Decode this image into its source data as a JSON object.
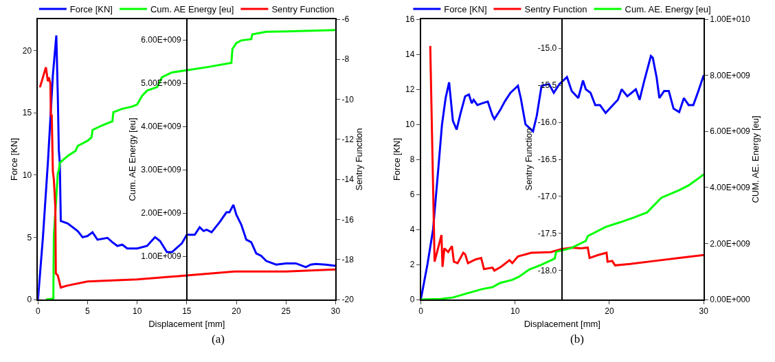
{
  "chart_data": [
    {
      "type": "line",
      "xlabel": "Displacement [mm]",
      "ylabel": "Force [KN]",
      "y2label": "Cum. AE Energy [eu]",
      "y3label": "Sentry Function",
      "legend": "top",
      "xlim": [
        0,
        30
      ],
      "xticks": [
        0,
        5,
        10,
        15,
        20,
        25,
        30
      ],
      "ylim": [
        0,
        22.5
      ],
      "yticks": [
        0,
        5,
        10,
        15,
        20
      ],
      "y2lim": [
        0,
        6480000000
      ],
      "y2ticks": [
        {
          "value": 1000000000,
          "label": "1.00E+009"
        },
        {
          "value": 2000000000,
          "label": "2.00E+009"
        },
        {
          "value": 3000000000,
          "label": "3.00E+009"
        },
        {
          "value": 4000000000,
          "label": "4.00E+009"
        },
        {
          "value": 5000000000,
          "label": "5.00E+009"
        },
        {
          "value": 6000000000,
          "label": "6.00E+009"
        }
      ],
      "y3lim": [
        -20,
        -6
      ],
      "y3ticks": [
        -20,
        -18,
        -16,
        -14,
        -12,
        -10,
        -8,
        -6
      ],
      "annotations": [
        "(a)"
      ],
      "series": [
        {
          "name": "Force [KN]",
          "color": "#0000ff",
          "x": [
            0,
            0.5,
            1.0,
            1.5,
            1.85,
            2.0,
            2.1,
            2.2,
            2.3,
            3,
            4,
            4.5,
            5,
            5.5,
            6,
            7,
            7.5,
            8,
            8.5,
            9,
            10,
            11,
            11.8,
            12.3,
            13,
            13.5,
            14.5,
            15,
            15.8,
            16.3,
            16.7,
            17,
            17.5,
            18.3,
            19,
            19.3,
            19.7,
            20,
            20.5,
            21,
            21.5,
            22,
            22.5,
            23,
            24,
            25,
            26,
            27,
            27.5,
            28,
            29,
            30
          ],
          "values": [
            0,
            5,
            11,
            18,
            21.2,
            16.3,
            12,
            11,
            6.3,
            6.1,
            5.5,
            5.0,
            5.1,
            5.4,
            4.8,
            4.95,
            4.6,
            4.3,
            4.4,
            4.1,
            4.1,
            4.3,
            5.0,
            4.7,
            3.8,
            3.8,
            4.5,
            5.2,
            5.2,
            5.8,
            5.5,
            5.6,
            5.4,
            6.2,
            7.0,
            7.0,
            7.6,
            6.8,
            6.0,
            4.8,
            4.6,
            3.7,
            3.5,
            3.1,
            2.8,
            2.9,
            2.9,
            2.6,
            2.8,
            2.85,
            2.8,
            2.7
          ]
        },
        {
          "name": "Cum. AE Energy [eu]",
          "color": "#00ff00",
          "axis": "y2",
          "x": [
            0.8,
            1.55,
            1.6,
            2.0,
            2.1,
            2.2,
            3,
            3.8,
            4,
            5,
            5.4,
            5.5,
            6.5,
            7.5,
            7.6,
            8.5,
            9.5,
            10,
            10.5,
            11,
            12,
            12.5,
            13.5,
            15,
            17,
            19.5,
            19.6,
            20,
            20.5,
            21.5,
            21.6,
            23,
            25,
            30
          ],
          "values": [
            0,
            20000000,
            1460000000,
            2920000000,
            2980000000,
            3160000000,
            3320000000,
            3440000000,
            3550000000,
            3670000000,
            3750000000,
            3920000000,
            4030000000,
            4120000000,
            4330000000,
            4410000000,
            4460000000,
            4510000000,
            4710000000,
            4830000000,
            4910000000,
            5140000000,
            5250000000,
            5300000000,
            5370000000,
            5470000000,
            5790000000,
            5930000000,
            5990000000,
            6020000000,
            6130000000,
            6190000000,
            6200000000,
            6230000000
          ]
        },
        {
          "name": "Sentry Function",
          "color": "#ff0000",
          "axis": "y3",
          "x": [
            0.2,
            0.8,
            1.0,
            1.1,
            1.25,
            1.3,
            1.39,
            1.5,
            1.6,
            1.75,
            1.8,
            2.0,
            2.3,
            3,
            5,
            10,
            15,
            19.8,
            20.3,
            25,
            30
          ],
          "values": [
            -9.4,
            -8.4,
            -9.1,
            -8.9,
            -9.2,
            -10.8,
            -10.8,
            -13.6,
            -14.0,
            -15.4,
            -18.7,
            -18.8,
            -19.4,
            -19.3,
            -19.1,
            -19.0,
            -18.8,
            -18.6,
            -18.6,
            -18.6,
            -18.5
          ]
        }
      ]
    },
    {
      "type": "line",
      "xlabel": "Displacement [mm]",
      "ylabel": "Force [KN]",
      "y2label": "Sentry Function",
      "y3label": "CUM. AE. Energy [eu]",
      "legend": "top",
      "xlim": [
        0,
        30
      ],
      "xticks": [
        0,
        10,
        20,
        30
      ],
      "ylim": [
        0,
        16
      ],
      "yticks": [
        0,
        2,
        4,
        6,
        8,
        10,
        12,
        14,
        16
      ],
      "y2lim": [
        -18.39,
        -14.61
      ],
      "y2ticks": [
        {
          "value": -15,
          "label": "-15.0"
        },
        {
          "value": -15.5,
          "label": "-15.5"
        },
        {
          "value": -16,
          "label": "-16.0"
        },
        {
          "value": -16.5,
          "label": "-16.5"
        },
        {
          "value": -17,
          "label": "-17.0"
        },
        {
          "value": -17.5,
          "label": "-17.5"
        },
        {
          "value": -18,
          "label": "-18.0"
        }
      ],
      "y3lim": [
        0,
        10000000000
      ],
      "y3ticks": [
        {
          "value": 0,
          "label": "0.00E+000"
        },
        {
          "value": 2000000000,
          "label": "2.00E+009"
        },
        {
          "value": 4000000000,
          "label": "4.00E+009"
        },
        {
          "value": 6000000000,
          "label": "6.00E+009"
        },
        {
          "value": 8000000000,
          "label": "8.00E+009"
        },
        {
          "value": 10000000000,
          "label": "1.00E+010"
        }
      ],
      "annotations": [
        "(b)"
      ],
      "series": [
        {
          "name": "Force [KN]",
          "color": "#0000ff",
          "x": [
            0,
            0.7,
            1.3,
            1.85,
            2.24,
            2.63,
            3.0,
            3.4,
            3.8,
            4.2,
            4.7,
            5.1,
            5.4,
            5.6,
            6.0,
            6.5,
            7.1,
            7.6,
            7.8,
            8.4,
            8.9,
            9.5,
            9.9,
            10.3,
            10.6,
            11.1,
            11.5,
            11.9,
            12.3,
            12.8,
            13.6,
            14.1,
            14.7,
            15.5,
            16.0,
            16.7,
            17.2,
            17.5,
            18.0,
            18.5,
            19.0,
            19.6,
            20.2,
            20.9,
            21.3,
            21.9,
            22.8,
            23.2,
            23.7,
            24.4,
            24.6,
            25.0,
            25.3,
            25.8,
            26.3,
            26.8,
            27.4,
            27.9,
            28.4,
            28.9,
            29.5,
            30
          ],
          "values": [
            0,
            2,
            4,
            7.45,
            9.96,
            11.5,
            12.4,
            10.2,
            9.7,
            10.6,
            11.6,
            11.7,
            11.2,
            11.4,
            11.1,
            11.2,
            11.3,
            10.5,
            10.3,
            10.8,
            11.3,
            11.8,
            12.0,
            12.2,
            11.5,
            10.0,
            9.8,
            9.6,
            10.5,
            12.2,
            12.3,
            11.8,
            12.3,
            12.7,
            11.9,
            11.5,
            12.5,
            12.0,
            11.8,
            11.1,
            11.1,
            10.65,
            11.0,
            11.4,
            12.0,
            11.6,
            12.0,
            11.4,
            12.5,
            13.9,
            13.8,
            12.7,
            11.5,
            11.9,
            11.9,
            10.9,
            10.7,
            11.5,
            11.1,
            11.1,
            12.0,
            12.8
          ]
        },
        {
          "name": "Sentry Function",
          "color": "#ff0000",
          "axis": "y2",
          "x": [
            1.0,
            1.46,
            2.19,
            2.3,
            2.5,
            2.9,
            3.3,
            3.5,
            3.9,
            4.5,
            4.7,
            5.0,
            5.8,
            6.4,
            6.7,
            7.6,
            7.8,
            8.5,
            9.4,
            9.7,
            10.3,
            11.7,
            13.8,
            14.9,
            16.0,
            17.0,
            17.7,
            17.9,
            18.8,
            19.7,
            19.8,
            20.3,
            20.6,
            22.2,
            24.8,
            27.4,
            30
          ],
          "values": [
            -14.97,
            -17.88,
            -17.52,
            -17.95,
            -17.7,
            -17.75,
            -17.67,
            -17.88,
            -17.9,
            -17.76,
            -17.78,
            -17.9,
            -17.85,
            -17.83,
            -17.98,
            -17.96,
            -18.0,
            -17.95,
            -17.86,
            -17.9,
            -17.81,
            -17.76,
            -17.75,
            -17.71,
            -17.69,
            -17.7,
            -17.69,
            -17.83,
            -17.79,
            -17.76,
            -17.88,
            -17.87,
            -17.93,
            -17.91,
            -17.87,
            -17.83,
            -17.79
          ]
        },
        {
          "name": "Cum. AE. Energy [eu]",
          "color": "#00ff00",
          "axis": "y3",
          "x": [
            0,
            2.1,
            3.4,
            4.7,
            6.5,
            7.6,
            8.4,
            9.7,
            10.4,
            11.5,
            12.8,
            14.2,
            14.35,
            15.9,
            17.5,
            17.7,
            19.6,
            21.1,
            22.7,
            24.0,
            25.5,
            27.4,
            28.4,
            30
          ],
          "values": [
            0,
            20000000,
            70000000,
            200000000,
            370000000,
            440000000,
            590000000,
            700000000,
            810000000,
            1070000000,
            1240000000,
            1460000000,
            1700000000,
            1830000000,
            2090000000,
            2260000000,
            2590000000,
            2750000000,
            2940000000,
            3110000000,
            3630000000,
            3900000000,
            4070000000,
            4460000000
          ]
        }
      ]
    }
  ]
}
